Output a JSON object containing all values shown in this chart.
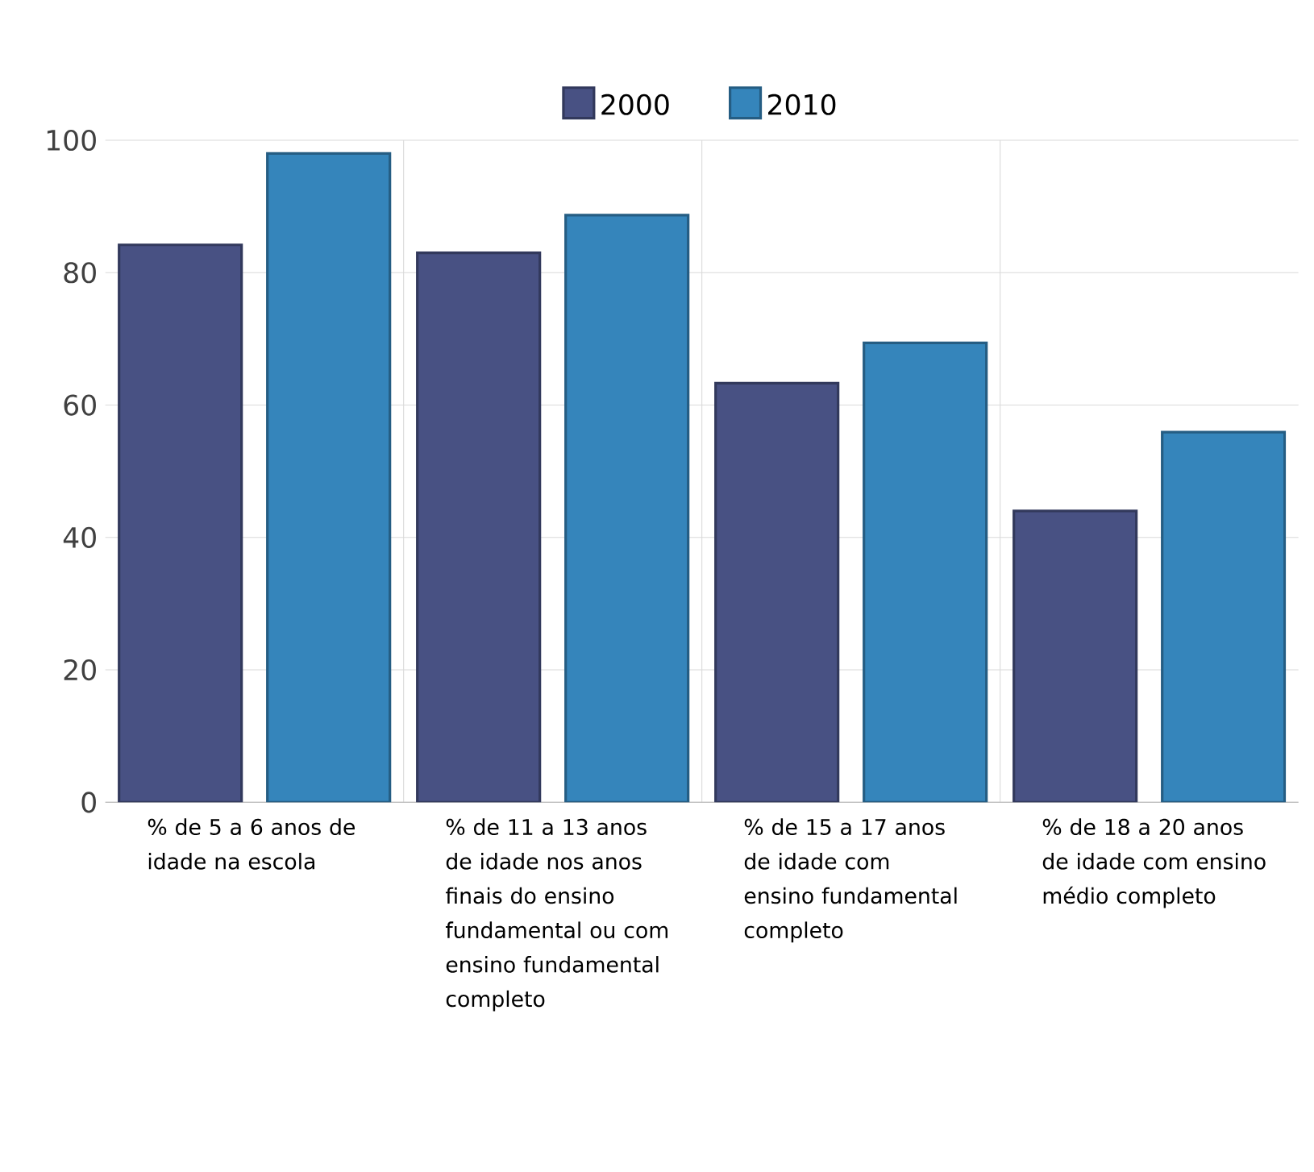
{
  "chart_data": {
    "type": "bar",
    "categories": [
      "% de 5 a 6 anos de idade na escola",
      "% de 11 a 13 anos de idade nos anos finais do ensino fundamental ou com ensino fundamental completo",
      "% de 15 a 17 anos de idade com ensino fundamental completo",
      "% de 18 a 20 anos de idade com ensino médio completo"
    ],
    "series": [
      {
        "name": "2000",
        "color": "#485183",
        "values": [
          84.2,
          83.0,
          63.3,
          44.0
        ]
      },
      {
        "name": "2010",
        "color": "#3585bb",
        "values": [
          98.0,
          88.7,
          69.4,
          55.9
        ]
      }
    ],
    "ylim": [
      0,
      100
    ],
    "yticks": [
      0,
      20,
      40,
      60,
      80,
      100
    ],
    "grid": true,
    "legend": "top"
  }
}
